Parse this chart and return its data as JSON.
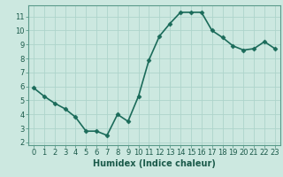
{
  "x": [
    0,
    1,
    2,
    3,
    4,
    5,
    6,
    7,
    8,
    9,
    10,
    11,
    12,
    13,
    14,
    15,
    16,
    17,
    18,
    19,
    20,
    21,
    22,
    23
  ],
  "y": [
    5.9,
    5.3,
    4.8,
    4.4,
    3.8,
    2.8,
    2.8,
    2.5,
    4.0,
    3.5,
    5.3,
    7.9,
    9.6,
    10.5,
    11.3,
    11.3,
    11.3,
    10.0,
    9.5,
    8.9,
    8.6,
    8.7,
    9.2,
    8.7
  ],
  "line_color": "#1b6b5a",
  "marker": "D",
  "marker_size": 2.5,
  "bg_color": "#cce8e0",
  "grid_color": "#aed4cb",
  "xlabel": "Humidex (Indice chaleur)",
  "xlim": [
    -0.5,
    23.5
  ],
  "ylim": [
    1.8,
    11.8
  ],
  "yticks": [
    2,
    3,
    4,
    5,
    6,
    7,
    8,
    9,
    10,
    11
  ],
  "xticks": [
    0,
    1,
    2,
    3,
    4,
    5,
    6,
    7,
    8,
    9,
    10,
    11,
    12,
    13,
    14,
    15,
    16,
    17,
    18,
    19,
    20,
    21,
    22,
    23
  ],
  "tick_fontsize": 6,
  "xlabel_fontsize": 7,
  "line_width": 1.2
}
